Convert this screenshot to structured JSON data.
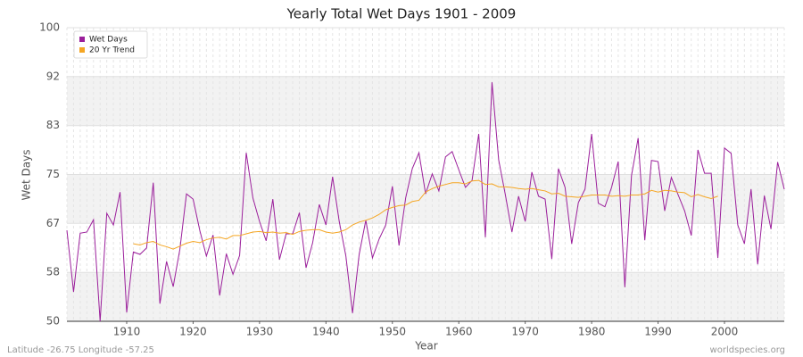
{
  "chart_data": {
    "type": "line",
    "title": "Yearly Total Wet Days 1901 - 2009",
    "xlabel": "Year",
    "ylabel": "Wet Days",
    "footnote": "Latitude -26.75 Longitude -57.25",
    "source": "worldspecies.org",
    "legend": "top-left",
    "grid": true,
    "xlim": [
      1901,
      2009
    ],
    "xticks": [
      1910,
      1920,
      1930,
      1940,
      1950,
      1960,
      1970,
      1980,
      1990,
      2000
    ],
    "ylim": [
      50,
      100
    ],
    "yticks": [
      50,
      {
        "value": 58.33,
        "label": "58"
      },
      {
        "value": 66.67,
        "label": "67"
      },
      75,
      {
        "value": 83.33,
        "label": "83"
      },
      {
        "value": 91.67,
        "label": "92"
      },
      100
    ],
    "x": [
      1901,
      1902,
      1903,
      1904,
      1905,
      1906,
      1907,
      1908,
      1909,
      1910,
      1911,
      1912,
      1913,
      1914,
      1915,
      1916,
      1917,
      1918,
      1919,
      1920,
      1921,
      1922,
      1923,
      1924,
      1925,
      1926,
      1927,
      1928,
      1929,
      1930,
      1931,
      1932,
      1933,
      1934,
      1935,
      1936,
      1937,
      1938,
      1939,
      1940,
      1941,
      1942,
      1943,
      1944,
      1945,
      1946,
      1947,
      1948,
      1949,
      1950,
      1951,
      1952,
      1953,
      1954,
      1955,
      1956,
      1957,
      1958,
      1959,
      1960,
      1961,
      1962,
      1963,
      1964,
      1965,
      1966,
      1967,
      1968,
      1969,
      1970,
      1971,
      1972,
      1973,
      1974,
      1975,
      1976,
      1977,
      1978,
      1979,
      1980,
      1981,
      1982,
      1983,
      1984,
      1985,
      1986,
      1987,
      1988,
      1989,
      1990,
      1991,
      1992,
      1993,
      1994,
      1995,
      1996,
      1997,
      1998,
      1999,
      2000,
      2001,
      2002,
      2003,
      2004,
      2005,
      2006,
      2007,
      2008,
      2009
    ],
    "series": [
      {
        "name": "Wet Days",
        "color": "#9b1f9b",
        "values": [
          65.5,
          55,
          65,
          65.2,
          67.3,
          50,
          68.4,
          66.4,
          72,
          51.5,
          61.8,
          61.4,
          62.5,
          73.6,
          53,
          60.2,
          55.9,
          62.2,
          71.7,
          70.8,
          65.5,
          61.1,
          64.7,
          54.4,
          61.5,
          58,
          61.2,
          78.7,
          71,
          67,
          63.7,
          70.8,
          60.5,
          64.9,
          64.9,
          68.5,
          59.1,
          63.4,
          69.9,
          66.4,
          74.6,
          67,
          61.1,
          51.4,
          61.4,
          67.2,
          60.8,
          64,
          66.4,
          73,
          62.9,
          71,
          76,
          78.7,
          71.7,
          75.1,
          72.2,
          78,
          78.9,
          75.8,
          72.8,
          74,
          81.9,
          64.3,
          90.7,
          77.5,
          71.6,
          65.2,
          71.3,
          67,
          75.4,
          71.3,
          70.8,
          60.6,
          76,
          72.8,
          63.2,
          70.2,
          72.5,
          81.9,
          70.1,
          69.5,
          72.8,
          77.2,
          55.8,
          74.8,
          81.2,
          63.8,
          77.4,
          77.2,
          68.8,
          74.5,
          71.6,
          68.8,
          64.6,
          79.2,
          75.2,
          75.2,
          60.8,
          79.5,
          78.6,
          66.4,
          63.2,
          72.5,
          59.7,
          71.4,
          65.7,
          77.1,
          72.5
        ]
      },
      {
        "name": "20 Yr Trend",
        "color": "#f5a623",
        "values": [
          null,
          null,
          null,
          null,
          null,
          null,
          null,
          null,
          null,
          null,
          63.2,
          63.0,
          63.4,
          63.6,
          63.0,
          62.7,
          62.3,
          62.8,
          63.3,
          63.6,
          63.4,
          63.9,
          64.2,
          64.3,
          64.0,
          64.6,
          64.6,
          64.9,
          65.2,
          65.3,
          65.1,
          65.2,
          65.0,
          65.1,
          64.8,
          65.3,
          65.5,
          65.6,
          65.6,
          65.2,
          65.0,
          65.2,
          65.6,
          66.4,
          66.9,
          67.2,
          67.6,
          68.2,
          69.0,
          69.4,
          69.7,
          69.8,
          70.4,
          70.6,
          72.0,
          72.6,
          73.0,
          73.3,
          73.6,
          73.6,
          73.4,
          73.9,
          74.0,
          73.3,
          73.4,
          72.9,
          72.9,
          72.8,
          72.6,
          72.5,
          72.6,
          72.4,
          72.2,
          71.7,
          71.8,
          71.3,
          71.2,
          71.1,
          71.3,
          71.5,
          71.5,
          71.5,
          71.3,
          71.4,
          71.3,
          71.5,
          71.5,
          71.7,
          72.3,
          72.0,
          72.3,
          72.2,
          72.0,
          71.9,
          71.2,
          71.6,
          71.2,
          70.9,
          71.3,
          null,
          null,
          null,
          null,
          null,
          null,
          null,
          null,
          null,
          null
        ]
      }
    ]
  }
}
